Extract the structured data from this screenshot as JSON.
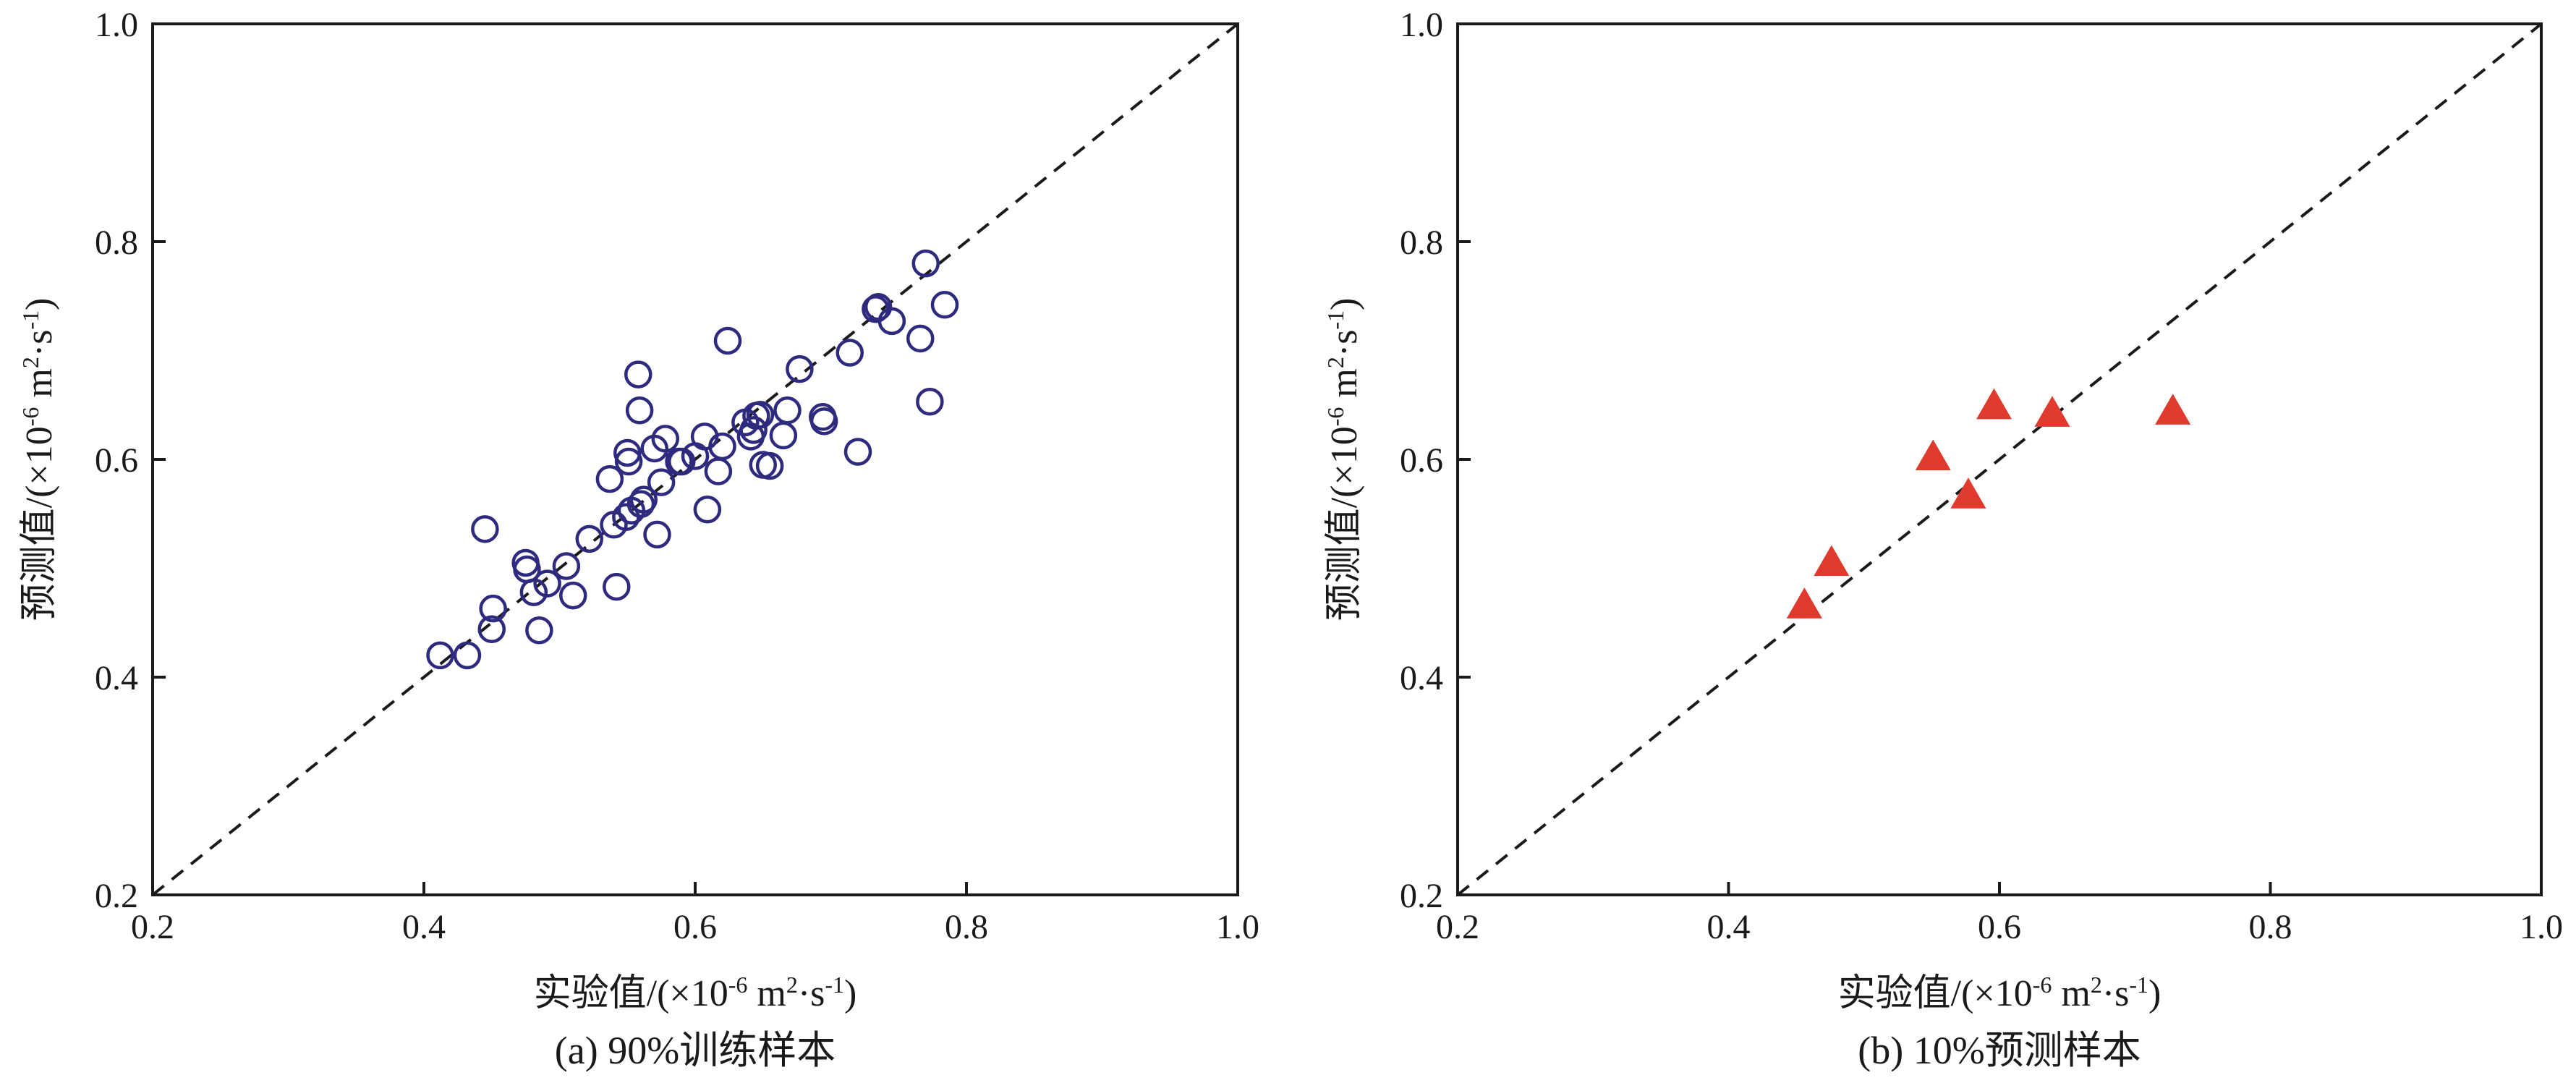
{
  "chart_data": [
    {
      "type": "scatter",
      "caption": "(a) 90%训练样本",
      "xlabel_prefix": "实验值/(×10",
      "ylabel_prefix": "预测值/(×10",
      "unit_exp": "-6",
      "unit_mid": " m",
      "unit_m_exp": "2",
      "unit_s": "·s",
      "unit_s_exp": "-1",
      "unit_close": ")",
      "xlim": [
        0.2,
        1.0
      ],
      "ylim": [
        0.2,
        1.0
      ],
      "xticks": [
        "0.2",
        "0.4",
        "0.6",
        "0.8",
        "1.0"
      ],
      "yticks": [
        "0.2",
        "0.4",
        "0.6",
        "0.8",
        "1.0"
      ],
      "reference_line": "y = x",
      "grid": false,
      "marker": "open-circle",
      "color": "#2e2a7e",
      "points": [
        [
          0.412,
          0.42
        ],
        [
          0.432,
          0.42
        ],
        [
          0.445,
          0.536
        ],
        [
          0.45,
          0.444
        ],
        [
          0.451,
          0.463
        ],
        [
          0.475,
          0.505
        ],
        [
          0.476,
          0.499
        ],
        [
          0.481,
          0.478
        ],
        [
          0.485,
          0.443
        ],
        [
          0.491,
          0.486
        ],
        [
          0.505,
          0.502
        ],
        [
          0.51,
          0.475
        ],
        [
          0.522,
          0.527
        ],
        [
          0.537,
          0.582
        ],
        [
          0.54,
          0.54
        ],
        [
          0.542,
          0.483
        ],
        [
          0.549,
          0.547
        ],
        [
          0.55,
          0.606
        ],
        [
          0.551,
          0.598
        ],
        [
          0.553,
          0.553
        ],
        [
          0.558,
          0.678
        ],
        [
          0.559,
          0.645
        ],
        [
          0.56,
          0.559
        ],
        [
          0.562,
          0.563
        ],
        [
          0.57,
          0.61
        ],
        [
          0.572,
          0.531
        ],
        [
          0.575,
          0.579
        ],
        [
          0.578,
          0.619
        ],
        [
          0.588,
          0.598
        ],
        [
          0.59,
          0.598
        ],
        [
          0.6,
          0.603
        ],
        [
          0.607,
          0.621
        ],
        [
          0.609,
          0.554
        ],
        [
          0.617,
          0.589
        ],
        [
          0.62,
          0.612
        ],
        [
          0.624,
          0.709
        ],
        [
          0.637,
          0.634
        ],
        [
          0.641,
          0.621
        ],
        [
          0.643,
          0.627
        ],
        [
          0.645,
          0.64
        ],
        [
          0.648,
          0.641
        ],
        [
          0.65,
          0.595
        ],
        [
          0.655,
          0.594
        ],
        [
          0.665,
          0.622
        ],
        [
          0.668,
          0.645
        ],
        [
          0.677,
          0.683
        ],
        [
          0.694,
          0.639
        ],
        [
          0.695,
          0.635
        ],
        [
          0.714,
          0.698
        ],
        [
          0.72,
          0.607
        ],
        [
          0.733,
          0.738
        ],
        [
          0.735,
          0.74
        ],
        [
          0.745,
          0.727
        ],
        [
          0.766,
          0.711
        ],
        [
          0.77,
          0.78
        ],
        [
          0.773,
          0.653
        ],
        [
          0.784,
          0.742
        ]
      ]
    },
    {
      "type": "scatter",
      "caption": "(b) 10%预测样本",
      "xlabel_prefix": "实验值/(×10",
      "ylabel_prefix": "预测值/(×10",
      "unit_exp": "-6",
      "unit_mid": " m",
      "unit_m_exp": "2",
      "unit_s": "·s",
      "unit_s_exp": "-1",
      "unit_close": ")",
      "xlim": [
        0.2,
        1.0
      ],
      "ylim": [
        0.2,
        1.0
      ],
      "xticks": [
        "0.2",
        "0.4",
        "0.6",
        "0.8",
        "1.0"
      ],
      "yticks": [
        "0.2",
        "0.4",
        "0.6",
        "0.8",
        "1.0"
      ],
      "reference_line": "y = x",
      "grid": false,
      "marker": "filled-triangle",
      "color": "#e03a2f",
      "points": [
        [
          0.456,
          0.465
        ],
        [
          0.476,
          0.504
        ],
        [
          0.551,
          0.601
        ],
        [
          0.577,
          0.566
        ],
        [
          0.596,
          0.648
        ],
        [
          0.639,
          0.641
        ],
        [
          0.728,
          0.643
        ]
      ]
    }
  ]
}
